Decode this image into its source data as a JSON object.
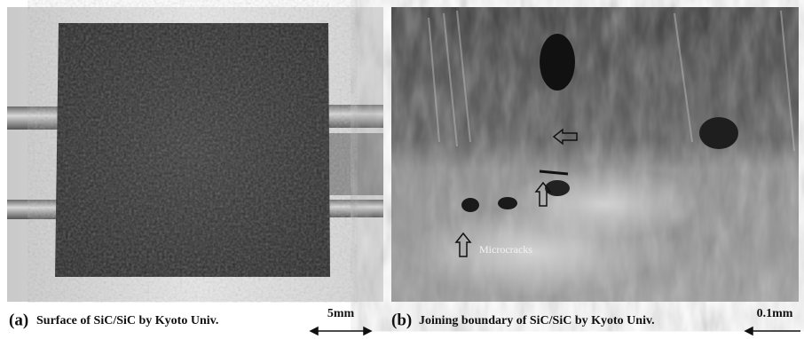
{
  "panels": [
    {
      "label": "(a)",
      "caption": "Surface of SiC/SiC by Kyoto Univ.",
      "scale_bar": "5mm"
    },
    {
      "label": "(b)",
      "caption": "Joining boundary of SiC/SiC by Kyoto Univ.",
      "scale_bar": "0.1mm",
      "annotation": "Microcracks"
    }
  ]
}
